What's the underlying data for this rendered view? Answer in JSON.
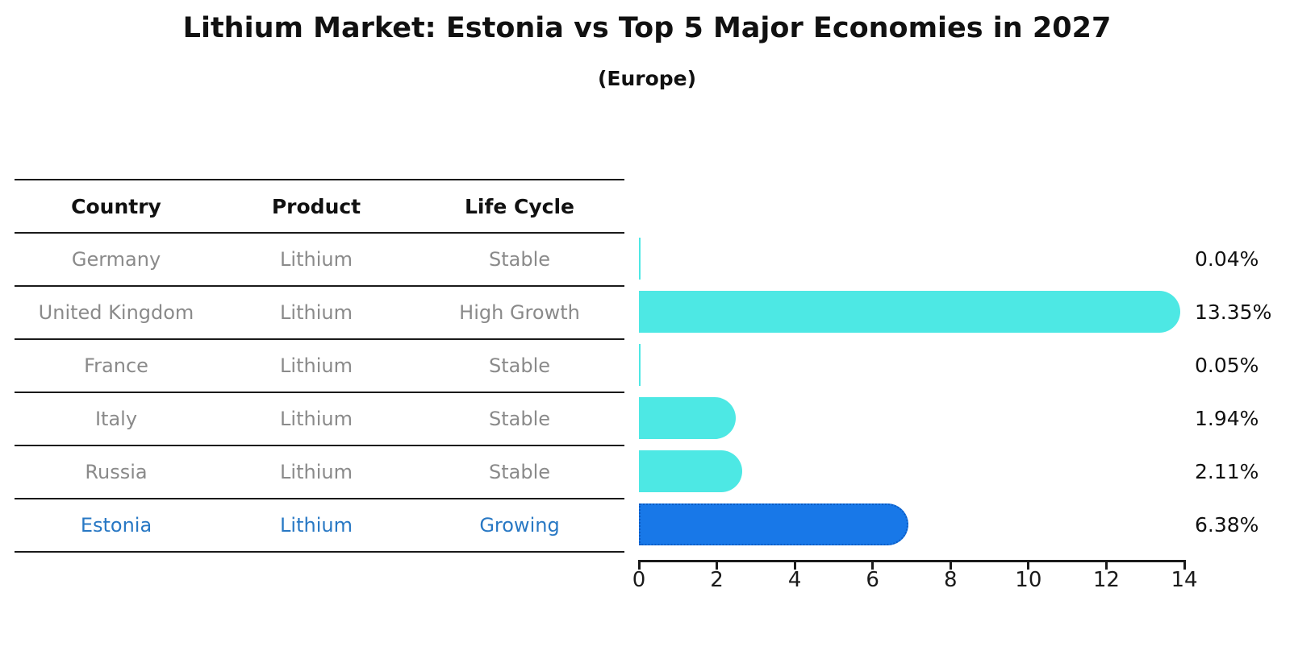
{
  "title": "Lithium Market: Estonia vs Top 5 Major Economies in 2027",
  "subtitle": "(Europe)",
  "table": {
    "headers": [
      "Country",
      "Product",
      "Life Cycle"
    ],
    "rows": [
      {
        "country": "Germany",
        "product": "Lithium",
        "life_cycle": "Stable",
        "highlight": false
      },
      {
        "country": "United Kingdom",
        "product": "Lithium",
        "life_cycle": "High Growth",
        "highlight": false
      },
      {
        "country": "France",
        "product": "Lithium",
        "life_cycle": "Stable",
        "highlight": false
      },
      {
        "country": "Italy",
        "product": "Lithium",
        "life_cycle": "Stable",
        "highlight": false
      },
      {
        "country": "Russia",
        "product": "Lithium",
        "life_cycle": "Stable",
        "highlight": false
      },
      {
        "country": "Estonia",
        "product": "Lithium",
        "life_cycle": "Growing",
        "highlight": true
      }
    ]
  },
  "chart_data": {
    "type": "bar",
    "orientation": "horizontal",
    "title": "Lithium Market: Estonia vs Top 5 Major Economies in 2027",
    "subtitle": "(Europe)",
    "categories": [
      "Germany",
      "United Kingdom",
      "France",
      "Italy",
      "Russia",
      "Estonia"
    ],
    "values": [
      0.04,
      13.35,
      0.05,
      1.94,
      2.11,
      6.38
    ],
    "value_labels": [
      "0.04%",
      "13.35%",
      "0.05%",
      "1.94%",
      "2.11%",
      "6.38%"
    ],
    "xlim": [
      0,
      14
    ],
    "x_ticks": [
      0,
      2,
      4,
      6,
      8,
      10,
      12,
      14
    ],
    "grid": false,
    "legend": "none",
    "bar_color": "#4de8e4",
    "highlight_index": 5,
    "highlight_color": "#1878e8",
    "highlight_border_color": "#0c5cc4",
    "text_color": "#111111",
    "muted_text_color": "#8a8a8a",
    "highlight_text_color": "#2878c4"
  }
}
